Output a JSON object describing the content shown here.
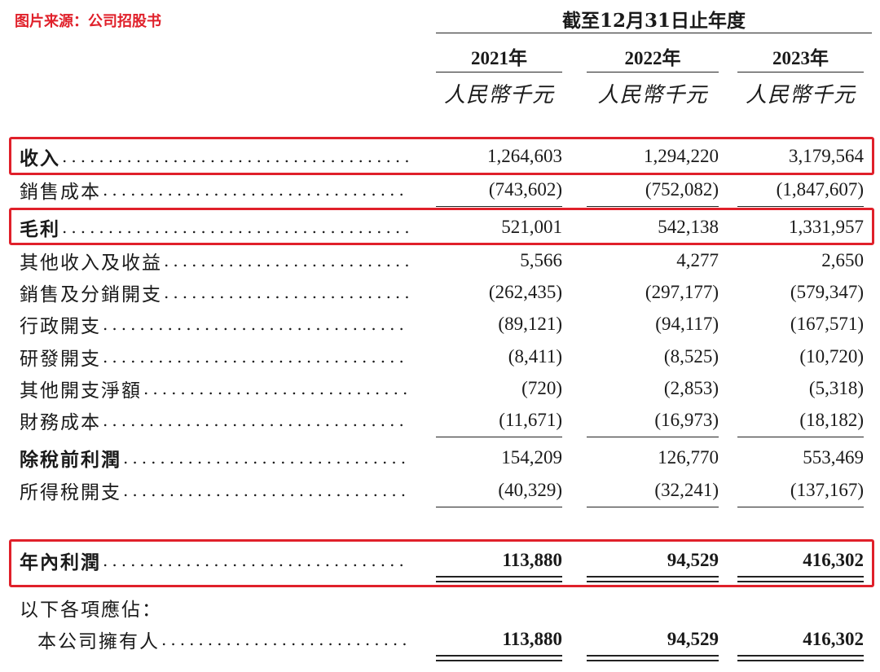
{
  "source_label": "图片来源：公司招股书",
  "header": {
    "period": "截至12月31日止年度",
    "years": [
      "2021年",
      "2022年",
      "2023年"
    ],
    "unit": "人民幣千元"
  },
  "rows": [
    {
      "label": "收入",
      "values": [
        "1,264,603",
        "1,294,220",
        "3,179,564"
      ]
    },
    {
      "label": "銷售成本",
      "values": [
        "(743,602)",
        "(752,082)",
        "(1,847,607)"
      ]
    },
    {
      "label": "毛利",
      "values": [
        "521,001",
        "542,138",
        "1,331,957"
      ]
    },
    {
      "label": "其他收入及收益",
      "values": [
        "5,566",
        "4,277",
        "2,650"
      ]
    },
    {
      "label": "銷售及分銷開支",
      "values": [
        "(262,435)",
        "(297,177)",
        "(579,347)"
      ]
    },
    {
      "label": "行政開支",
      "values": [
        "(89,121)",
        "(94,117)",
        "(167,571)"
      ]
    },
    {
      "label": "研發開支",
      "values": [
        "(8,411)",
        "(8,525)",
        "(10,720)"
      ]
    },
    {
      "label": "其他開支淨額",
      "values": [
        "(720)",
        "(2,853)",
        "(5,318)"
      ]
    },
    {
      "label": "財務成本",
      "values": [
        "(11,671)",
        "(16,973)",
        "(18,182)"
      ]
    },
    {
      "label": "除稅前利潤",
      "values": [
        "154,209",
        "126,770",
        "553,469"
      ]
    },
    {
      "label": "所得稅開支",
      "values": [
        "(40,329)",
        "(32,241)",
        "(137,167)"
      ]
    },
    {
      "label": "年內利潤",
      "values": [
        "113,880",
        "94,529",
        "416,302"
      ]
    },
    {
      "label": "以下各項應佔："
    },
    {
      "label": "本公司擁有人",
      "values": [
        "113,880",
        "94,529",
        "416,302"
      ]
    }
  ],
  "highlight_color": "#e0202a"
}
